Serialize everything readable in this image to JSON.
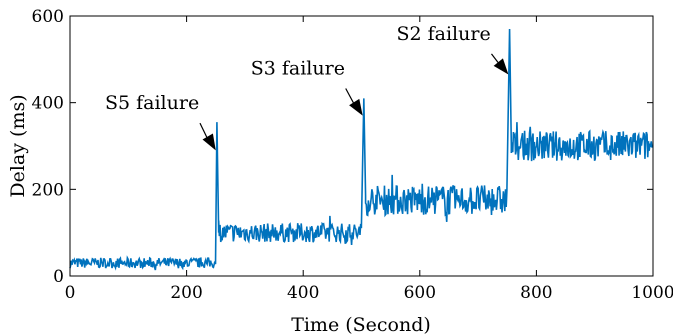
{
  "chart_data": {
    "type": "line",
    "title": "",
    "xlabel": "Time (Second)",
    "ylabel": "Delay (ms)",
    "xlim": [
      0,
      1000
    ],
    "ylim": [
      0,
      600
    ],
    "xticks": [
      0,
      200,
      400,
      600,
      800,
      1000
    ],
    "yticks": [
      0,
      200,
      400,
      600
    ],
    "xtick_labels": [
      "0",
      "200",
      "400",
      "600",
      "800",
      "1000"
    ],
    "ytick_labels": [
      "0",
      "200",
      "400",
      "600"
    ],
    "grid": false,
    "legend": "none",
    "color": "#0072BD",
    "series": [
      {
        "x": [
          0,
          245,
          250,
          252,
          255,
          500,
          502,
          504,
          507,
          750,
          752,
          754,
          757,
          1000
        ],
        "y": [
          30,
          30,
          30,
          355,
          100,
          100,
          110,
          410,
          185,
          175,
          180,
          570,
          300,
          305
        ],
        "noise_note_segments": [
          {
            "x": [
              0,
              250
            ],
            "mean": 30,
            "spread": 12
          },
          {
            "x": [
              255,
              500
            ],
            "mean": 100,
            "spread": 22
          },
          {
            "x": [
              507,
              750
            ],
            "mean": 175,
            "spread": 35
          },
          {
            "x": [
              757,
              1000
            ],
            "mean": 300,
            "spread": 35
          }
        ]
      }
    ],
    "annotations": [
      {
        "text": "S5 failure",
        "point": [
          250,
          290
        ],
        "label_at": [
          60,
          385
        ]
      },
      {
        "text": "S3 failure",
        "point": [
          502,
          370
        ],
        "label_at": [
          310,
          465
        ]
      },
      {
        "text": "S2 failure",
        "point": [
          752,
          465
        ],
        "label_at": [
          560,
          545
        ]
      }
    ]
  }
}
